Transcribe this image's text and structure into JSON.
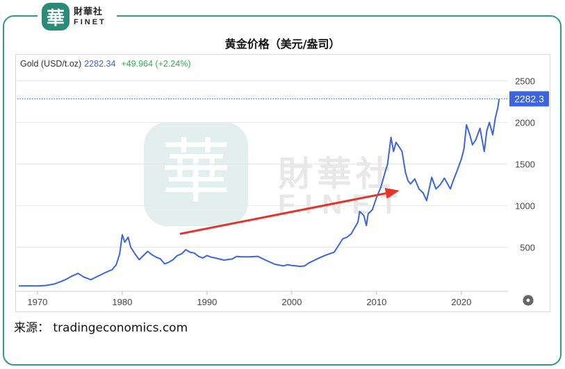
{
  "brand": {
    "logo_char": "華",
    "name_cn": "財華社",
    "name_en": "FINET"
  },
  "chart_data": {
    "type": "line",
    "title": "黄金价格（美元/盎司）",
    "legend": {
      "symbol": "Gold (USD/t.oz)",
      "price": "2282.34",
      "change": "+49.964 (+2.24%)"
    },
    "last_value_label": "2282.3",
    "x_ticks": [
      "1970",
      "1980",
      "1990",
      "2000",
      "2010",
      "2020"
    ],
    "y_ticks": [
      "500",
      "1000",
      "1500",
      "2000",
      "2500"
    ],
    "xlim": [
      1967.8,
      2025.5
    ],
    "ylim": [
      -30,
      2620
    ],
    "grid": true,
    "series": [
      {
        "color": "#3b64e0",
        "points": [
          [
            1967.8,
            35
          ],
          [
            1969.0,
            36
          ],
          [
            1970.0,
            35
          ],
          [
            1971.0,
            40
          ],
          [
            1972.0,
            58
          ],
          [
            1973.0,
            97
          ],
          [
            1973.5,
            120
          ],
          [
            1974.0,
            150
          ],
          [
            1974.8,
            185
          ],
          [
            1975.5,
            140
          ],
          [
            1976.3,
            110
          ],
          [
            1977.0,
            145
          ],
          [
            1978.0,
            195
          ],
          [
            1978.8,
            230
          ],
          [
            1979.3,
            290
          ],
          [
            1979.7,
            420
          ],
          [
            1980.0,
            650
          ],
          [
            1980.3,
            560
          ],
          [
            1980.7,
            620
          ],
          [
            1981.0,
            500
          ],
          [
            1981.5,
            420
          ],
          [
            1982.0,
            350
          ],
          [
            1982.5,
            400
          ],
          [
            1983.0,
            450
          ],
          [
            1983.5,
            410
          ],
          [
            1984.0,
            380
          ],
          [
            1984.5,
            360
          ],
          [
            1985.0,
            300
          ],
          [
            1985.5,
            320
          ],
          [
            1986.0,
            350
          ],
          [
            1986.5,
            400
          ],
          [
            1987.0,
            420
          ],
          [
            1987.5,
            470
          ],
          [
            1988.0,
            440
          ],
          [
            1988.5,
            430
          ],
          [
            1989.0,
            390
          ],
          [
            1989.5,
            370
          ],
          [
            1990.0,
            400
          ],
          [
            1990.5,
            380
          ],
          [
            1991.0,
            370
          ],
          [
            1992.0,
            345
          ],
          [
            1993.0,
            360
          ],
          [
            1993.5,
            390
          ],
          [
            1994.0,
            385
          ],
          [
            1995.0,
            385
          ],
          [
            1996.0,
            390
          ],
          [
            1997.0,
            340
          ],
          [
            1998.0,
            295
          ],
          [
            1999.0,
            275
          ],
          [
            1999.5,
            290
          ],
          [
            2000.0,
            280
          ],
          [
            2001.0,
            270
          ],
          [
            2001.5,
            275
          ],
          [
            2002.0,
            310
          ],
          [
            2003.0,
            360
          ],
          [
            2004.0,
            405
          ],
          [
            2005.0,
            440
          ],
          [
            2006.0,
            600
          ],
          [
            2006.5,
            620
          ],
          [
            2007.0,
            660
          ],
          [
            2007.8,
            800
          ],
          [
            2008.0,
            930
          ],
          [
            2008.5,
            880
          ],
          [
            2008.8,
            760
          ],
          [
            2009.0,
            900
          ],
          [
            2009.5,
            950
          ],
          [
            2010.0,
            1100
          ],
          [
            2010.5,
            1220
          ],
          [
            2011.0,
            1400
          ],
          [
            2011.3,
            1500
          ],
          [
            2011.7,
            1820
          ],
          [
            2012.0,
            1650
          ],
          [
            2012.3,
            1760
          ],
          [
            2012.7,
            1700
          ],
          [
            2013.0,
            1650
          ],
          [
            2013.4,
            1400
          ],
          [
            2013.7,
            1300
          ],
          [
            2014.0,
            1260
          ],
          [
            2014.5,
            1320
          ],
          [
            2015.0,
            1200
          ],
          [
            2015.5,
            1150
          ],
          [
            2015.9,
            1060
          ],
          [
            2016.5,
            1340
          ],
          [
            2017.0,
            1200
          ],
          [
            2017.5,
            1250
          ],
          [
            2018.0,
            1330
          ],
          [
            2018.7,
            1200
          ],
          [
            2019.0,
            1290
          ],
          [
            2019.5,
            1420
          ],
          [
            2020.0,
            1560
          ],
          [
            2020.3,
            1680
          ],
          [
            2020.6,
            1970
          ],
          [
            2021.0,
            1850
          ],
          [
            2021.3,
            1730
          ],
          [
            2021.7,
            1790
          ],
          [
            2022.2,
            1930
          ],
          [
            2022.7,
            1650
          ],
          [
            2023.0,
            1900
          ],
          [
            2023.3,
            2000
          ],
          [
            2023.7,
            1850
          ],
          [
            2024.0,
            2050
          ],
          [
            2024.3,
            2180
          ],
          [
            2024.45,
            2282
          ]
        ]
      }
    ],
    "annotations": [
      {
        "type": "arrow",
        "from": [
          1986.8,
          660
        ],
        "to": [
          2012.7,
          1180
        ],
        "color": "#e53329"
      }
    ],
    "reference_line": {
      "y": 2282.34,
      "style": "dotted",
      "color": "#3b64e0"
    }
  },
  "source_note": "来源： tradingeconomics.com",
  "settings_icon": "gear-icon"
}
